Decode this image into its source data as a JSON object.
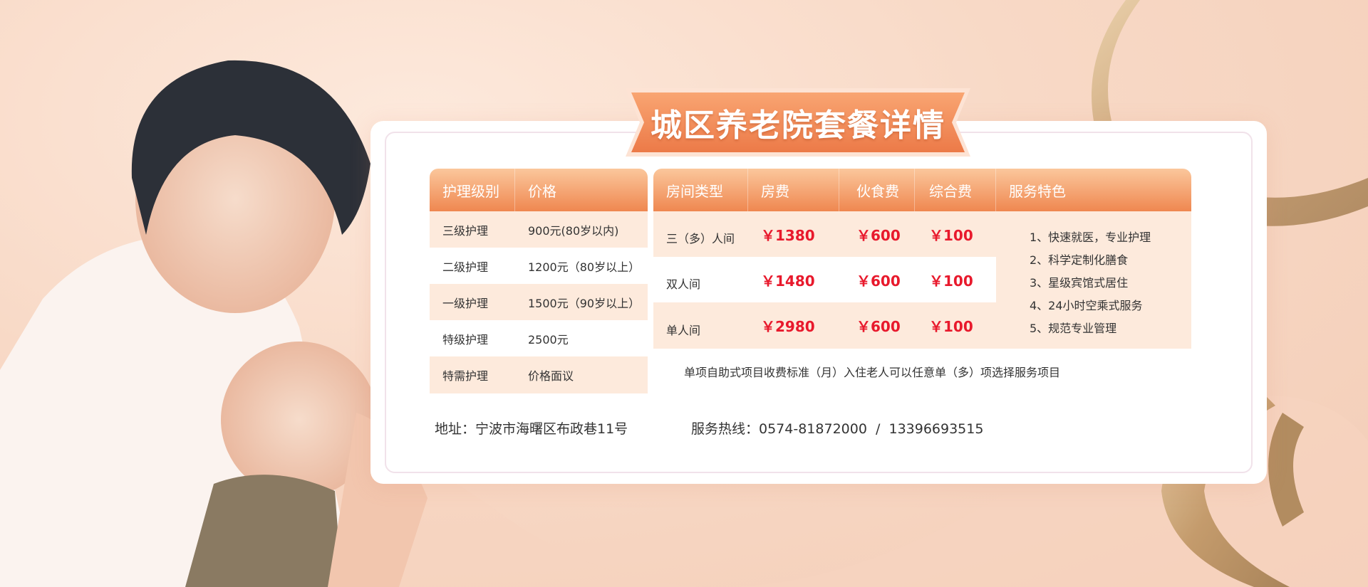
{
  "banner": {
    "title": "城区养老院套餐详情"
  },
  "care_table": {
    "headers": [
      "护理级别",
      "价格"
    ],
    "rows": [
      {
        "level": "三级护理",
        "price": "900元(80岁以内)"
      },
      {
        "level": "二级护理",
        "price": "1200元（80岁以上）"
      },
      {
        "level": "一级护理",
        "price": "1500元（90岁以上）"
      },
      {
        "level": "特级护理",
        "price": "2500元"
      },
      {
        "level": "特需护理",
        "price": "价格面议"
      }
    ]
  },
  "room_table": {
    "headers": [
      "房间类型",
      "房费",
      "伙食费",
      "综合费",
      "服务特色"
    ],
    "rows": [
      {
        "type": "三（多）人间",
        "room": "￥1380",
        "food": "￥600",
        "general": "￥100"
      },
      {
        "type": "双人间",
        "room": "￥1480",
        "food": "￥600",
        "general": "￥100"
      },
      {
        "type": "单人间",
        "room": "￥2980",
        "food": "￥600",
        "general": "￥100"
      }
    ],
    "features": [
      "1、快速就医，专业护理",
      "2、科学定制化膳食",
      "3、星级宾馆式居住",
      "4、24小时空乘式服务",
      "5、规范专业管理"
    ],
    "footnote": "单项自助式项目收费标准（月）入住老人可以任意单（多）项选择服务项目"
  },
  "contact": {
    "address": "地址：宁波市海曙区布政巷11号",
    "hotline": "服务热线：0574-81872000  /  13396693515"
  },
  "colors": {
    "header_orange": "#ef8750",
    "price_red": "#e8192c",
    "row_peach": "#fdeadc",
    "ribbon_gold": "#c9a77a"
  }
}
